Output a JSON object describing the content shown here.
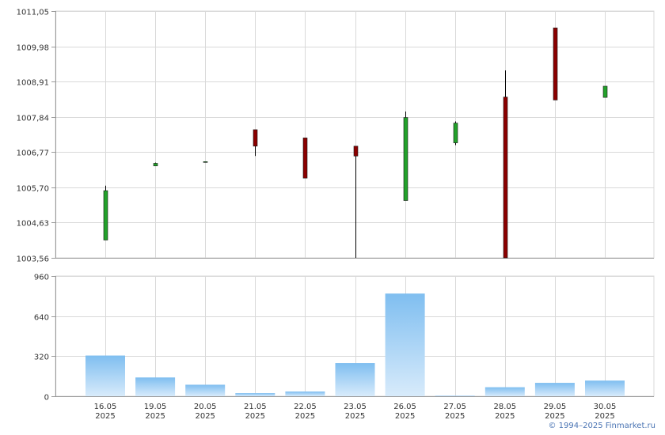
{
  "footer": {
    "credit": "© 1994–2025 Finmarket.ru"
  },
  "colors": {
    "up": "#22a12a",
    "down": "#8b0000",
    "volume_top": "#7fbef0",
    "volume_bottom": "#d8ebfb",
    "grid": "#d9d9d9",
    "axis": "#9a9a9a"
  },
  "chart_data": [
    {
      "type": "candlestick",
      "ylim": [
        1003.56,
        1011.05
      ],
      "yticks": [
        "1011,05",
        "1009,98",
        "1008,91",
        "1007,84",
        "1006,77",
        "1005,70",
        "1004,63",
        "1003,56"
      ],
      "grid": true,
      "candles": [
        {
          "date": "16.05.2025",
          "open": 1004.1,
          "high": 1005.75,
          "low": 1004.1,
          "close": 1005.6
        },
        {
          "date": "19.05.2025",
          "open": 1006.35,
          "high": 1006.45,
          "low": 1006.35,
          "close": 1006.43
        },
        {
          "date": "20.05.2025",
          "open": 1006.48,
          "high": 1006.48,
          "low": 1006.48,
          "close": 1006.48
        },
        {
          "date": "21.05.2025",
          "open": 1007.45,
          "high": 1007.45,
          "low": 1006.65,
          "close": 1006.95
        },
        {
          "date": "22.05.2025",
          "open": 1007.2,
          "high": 1007.2,
          "low": 1005.98,
          "close": 1005.98
        },
        {
          "date": "23.05.2025",
          "open": 1006.95,
          "high": 1006.95,
          "low": 1003.56,
          "close": 1006.65
        },
        {
          "date": "26.05.2025",
          "open": 1005.3,
          "high": 1008.0,
          "low": 1005.3,
          "close": 1007.82
        },
        {
          "date": "27.05.2025",
          "open": 1007.05,
          "high": 1007.7,
          "low": 1006.98,
          "close": 1007.65
        },
        {
          "date": "28.05.2025",
          "open": 1008.44,
          "high": 1009.25,
          "low": 1003.56,
          "close": 1003.56
        },
        {
          "date": "29.05.2025",
          "open": 1010.54,
          "high": 1010.54,
          "low": 1008.35,
          "close": 1008.35
        },
        {
          "date": "30.05.2025",
          "open": 1008.43,
          "high": 1008.77,
          "low": 1008.43,
          "close": 1008.77
        }
      ]
    },
    {
      "type": "bar",
      "ylim": [
        0,
        960
      ],
      "yticks": [
        "960",
        "640",
        "320",
        "0"
      ],
      "grid": true,
      "categories": [
        [
          "16.05",
          "2025"
        ],
        [
          "19.05",
          "2025"
        ],
        [
          "20.05",
          "2025"
        ],
        [
          "21.05",
          "2025"
        ],
        [
          "22.05",
          "2025"
        ],
        [
          "23.05",
          "2025"
        ],
        [
          "26.05",
          "2025"
        ],
        [
          "27.05",
          "2025"
        ],
        [
          "28.05",
          "2025"
        ],
        [
          "29.05",
          "2025"
        ],
        [
          "30.05",
          "2025"
        ]
      ],
      "values": [
        325,
        150,
        92,
        25,
        38,
        265,
        820,
        5,
        72,
        107,
        125
      ]
    }
  ]
}
